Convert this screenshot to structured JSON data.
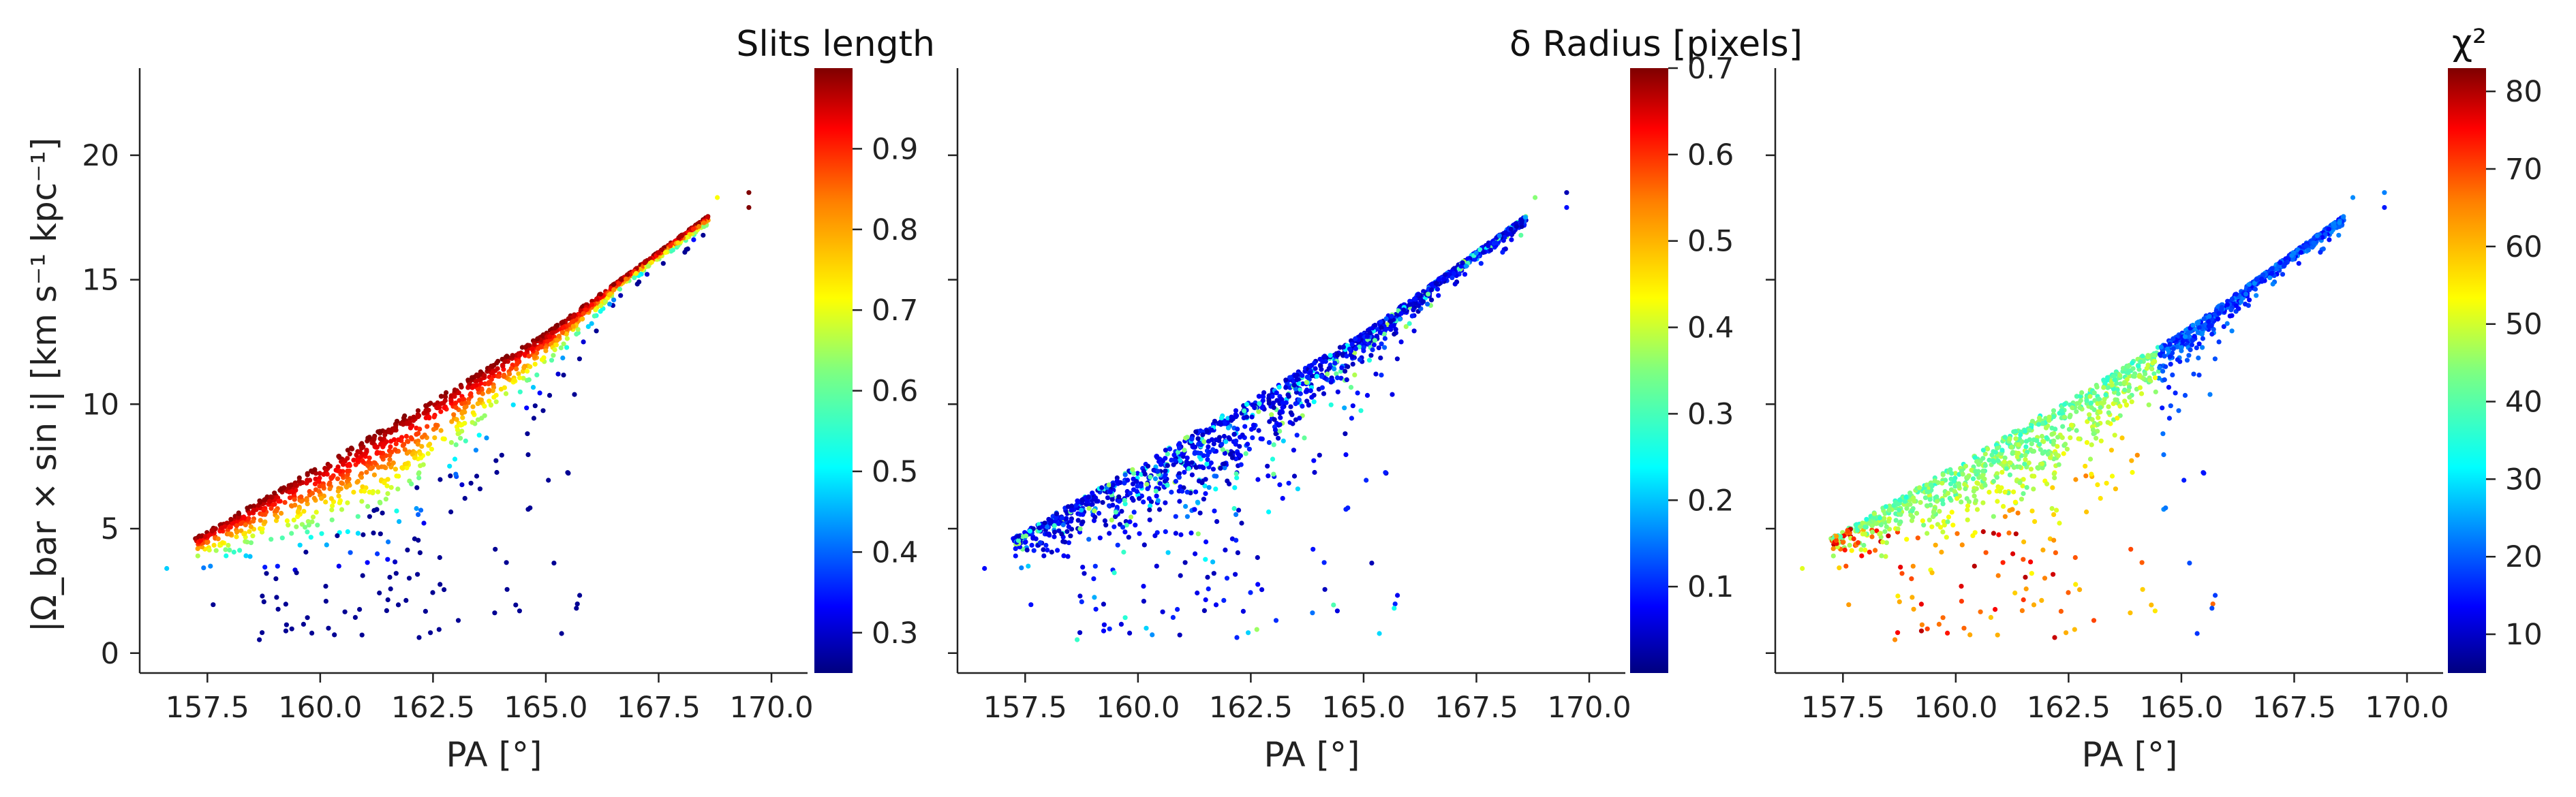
{
  "figure": {
    "ylabel": "|Ω_bar × sin i|  [km s⁻¹ kpc⁻¹]"
  },
  "chart_data": [
    {
      "type": "scatter",
      "xlabel": "PA [°]",
      "ylabel": "|Ω_bar × sin i|  [km s⁻¹ kpc⁻¹]",
      "xlim": [
        156.0,
        170.8
      ],
      "ylim": [
        -0.8,
        23.5
      ],
      "x_ticks": [
        "157.5",
        "160.0",
        "162.5",
        "165.0",
        "167.5",
        "170.0"
      ],
      "y_ticks": [
        "0",
        "5",
        "10",
        "15",
        "20"
      ],
      "colorbar": {
        "title": "Slits length",
        "range": [
          0.25,
          1.0
        ],
        "ticks": [
          "0.3",
          "0.4",
          "0.5",
          "0.6",
          "0.7",
          "0.8",
          "0.9"
        ],
        "colormap": "jet"
      },
      "series_description": "Upper ridge colored dark red (slit length ~1.0); lower scatter shades through yellow/cyan to blue (~0.3–0.5)"
    },
    {
      "type": "scatter",
      "xlabel": "PA [°]",
      "xlim": [
        156.0,
        170.8
      ],
      "ylim": [
        -0.8,
        23.5
      ],
      "x_ticks": [
        "157.5",
        "160.0",
        "162.5",
        "165.0",
        "167.5",
        "170.0"
      ],
      "colorbar": {
        "title": "δ Radius [pixels]",
        "range": [
          0.0,
          0.7
        ],
        "ticks": [
          "0.1",
          "0.2",
          "0.3",
          "0.4",
          "0.5",
          "0.6",
          "0.7"
        ],
        "colormap": "jet"
      },
      "series_description": "Most points dark blue (δ radius ~0.0–0.1) with scattered cyan/green points"
    },
    {
      "type": "scatter",
      "xlabel": "PA [°]",
      "xlim": [
        156.0,
        170.8
      ],
      "ylim": [
        -0.8,
        23.5
      ],
      "x_ticks": [
        "157.5",
        "160.0",
        "162.5",
        "165.0",
        "167.5",
        "170.0"
      ],
      "colorbar": {
        "title": "χ²",
        "range": [
          5,
          83
        ],
        "ticks": [
          "10",
          "20",
          "30",
          "40",
          "50",
          "60",
          "70",
          "80"
        ],
        "colormap": "jet"
      },
      "series_description": "Upper-right ridge blue (χ² ~10–25); lower-left cloud green/yellow (χ² ~35–55) with some orange/red outliers"
    }
  ],
  "colors": {
    "jet_stops": [
      "#00007f",
      "#0000ff",
      "#007fff",
      "#00ffff",
      "#7fff7f",
      "#ffff00",
      "#ff7f00",
      "#ff0000",
      "#7f0000"
    ]
  }
}
